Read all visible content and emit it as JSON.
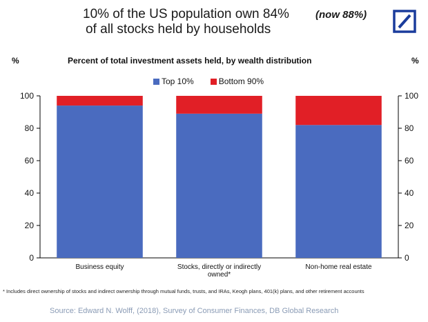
{
  "headline": {
    "line1": "10% of the US population own 84%",
    "line2": "of all stocks held by households",
    "note": "(now 88%)"
  },
  "logo": {
    "name": "deutsche-bank-logo",
    "color": "#1a3c9c"
  },
  "chart_data": {
    "type": "bar",
    "stacked": true,
    "title": "Percent of total investment assets held, by wealth distribution",
    "ylabel_left": "%",
    "ylabel_right": "%",
    "ylim": [
      0,
      100
    ],
    "yticks": [
      0,
      20,
      40,
      60,
      80,
      100
    ],
    "grid": false,
    "legend_position": "top",
    "categories": [
      [
        "Business equity"
      ],
      [
        "Stocks, directly or indirectly",
        "owned*"
      ],
      [
        "Non-home real estate"
      ]
    ],
    "series": [
      {
        "name": "Top 10%",
        "color": "#4a6bbf",
        "values": [
          94,
          89,
          82
        ]
      },
      {
        "name": "Bottom 90%",
        "color": "#e11f26",
        "values": [
          6,
          11,
          18
        ]
      }
    ]
  },
  "footnote": "* Includes direct ownership of stocks and indirect ownership through mutual funds, trusts, and IRAs, Keogh plans, 401(k) plans, and other retirement accounts",
  "source": "Source: Edward N. Wolff, (2018), Survey of Consumer Finances, DB Global Research"
}
